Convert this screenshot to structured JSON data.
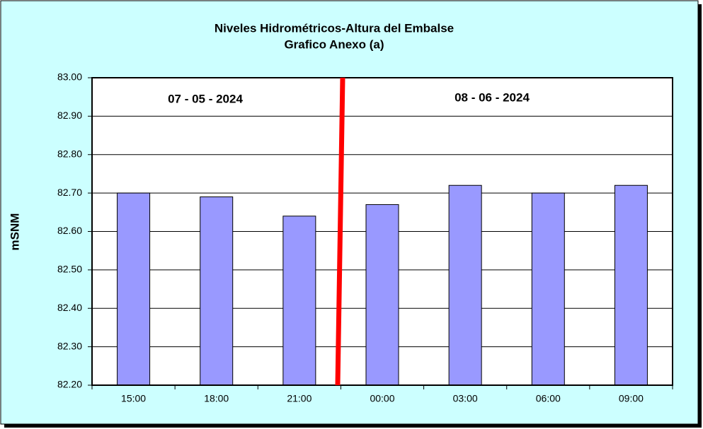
{
  "chart_data": {
    "type": "bar",
    "title": "Niveles Hidrométricos-Altura del Embalse",
    "subtitle": "Grafico Anexo (a)",
    "y_label": "mSNM",
    "annotations": [
      "07 - 05 - 2024",
      "08 - 06 - 2024"
    ],
    "categories": [
      "15:00",
      "18:00",
      "21:00",
      "00:00",
      "03:00",
      "06:00",
      "09:00"
    ],
    "values": [
      82.7,
      82.69,
      82.64,
      82.67,
      82.72,
      82.7,
      82.72
    ],
    "color": "#9999ff",
    "ylim": [
      82.2,
      83.0
    ],
    "yticks": [
      {
        "value": 82.2,
        "label": "82.20"
      },
      {
        "value": 82.3,
        "label": "82.30"
      },
      {
        "value": 82.4,
        "label": "82.40"
      },
      {
        "value": 82.5,
        "label": "82.50"
      },
      {
        "value": 82.6,
        "label": "82.60"
      },
      {
        "value": 82.7,
        "label": "82.70"
      },
      {
        "value": 82.8,
        "label": "82.80"
      },
      {
        "value": 82.9,
        "label": "82.90"
      },
      {
        "value": 83.0,
        "label": "83.00"
      }
    ],
    "grid": true
  }
}
